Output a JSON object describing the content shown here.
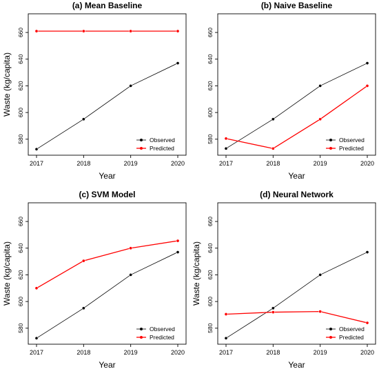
{
  "chart_data": [
    {
      "type": "line",
      "title": "(a) Mean Baseline",
      "xlabel": "Year",
      "ylabel": "Waste (kg/capita)",
      "x": [
        2017,
        2018,
        2019,
        2020
      ],
      "ylim": [
        568,
        674
      ],
      "yticks": [
        580,
        600,
        620,
        640,
        660
      ],
      "series": [
        {
          "name": "Observed",
          "color": "#000000",
          "values": [
            572.5,
            595,
            620,
            637
          ]
        },
        {
          "name": "Predicted",
          "color": "#ff0000",
          "values": [
            661,
            661,
            661,
            661
          ]
        }
      ],
      "legend_position": "bottom-right",
      "grid": false
    },
    {
      "type": "line",
      "title": "(b) Naive Baseline",
      "xlabel": "Year",
      "ylabel": "",
      "x": [
        2017,
        2018,
        2019,
        2020
      ],
      "ylim": [
        568,
        674
      ],
      "yticks": [
        580,
        600,
        620,
        640,
        660
      ],
      "series": [
        {
          "name": "Observed",
          "color": "#000000",
          "values": [
            573,
            595,
            620,
            637
          ]
        },
        {
          "name": "Predicted",
          "color": "#ff0000",
          "values": [
            580.5,
            573,
            595,
            620
          ]
        }
      ],
      "legend_position": "bottom-right",
      "grid": false
    },
    {
      "type": "line",
      "title": "(c) SVM Model",
      "xlabel": "Year",
      "ylabel": "Waste (kg/capita)",
      "x": [
        2017,
        2018,
        2019,
        2020
      ],
      "ylim": [
        568,
        674
      ],
      "yticks": [
        580,
        600,
        620,
        640,
        660
      ],
      "series": [
        {
          "name": "Observed",
          "color": "#000000",
          "values": [
            572.5,
            595,
            620,
            637
          ]
        },
        {
          "name": "Predicted",
          "color": "#ff0000",
          "values": [
            610,
            630.5,
            640,
            645.5
          ]
        }
      ],
      "legend_position": "bottom-right",
      "grid": false
    },
    {
      "type": "line",
      "title": "(d) Neural Network",
      "xlabel": "Year",
      "ylabel": "Waste (kg/capita)",
      "x": [
        2017,
        2018,
        2019,
        2020
      ],
      "ylim": [
        568,
        674
      ],
      "yticks": [
        580,
        600,
        620,
        640,
        660
      ],
      "series": [
        {
          "name": "Observed",
          "color": "#000000",
          "values": [
            572.5,
            595,
            620,
            637
          ]
        },
        {
          "name": "Predicted",
          "color": "#ff0000",
          "values": [
            590.5,
            592,
            592.5,
            584
          ]
        }
      ],
      "legend_position": "bottom-right",
      "grid": false
    }
  ]
}
